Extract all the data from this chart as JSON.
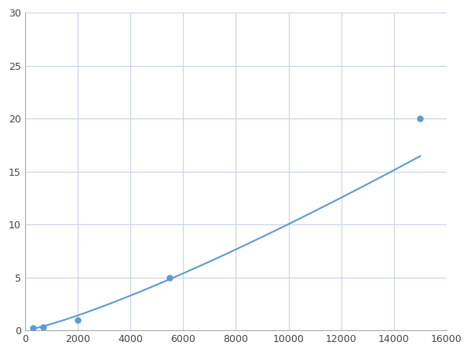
{
  "x": [
    300,
    700,
    2000,
    5500,
    15000
  ],
  "y": [
    0.2,
    0.3,
    1.0,
    5.0,
    20.0
  ],
  "line_color": "#5b9bd5",
  "marker_color": "#5b9bd5",
  "marker_size": 5,
  "line_width": 1.5,
  "xlim": [
    0,
    16000
  ],
  "ylim": [
    0,
    30
  ],
  "xticks": [
    0,
    2000,
    4000,
    6000,
    8000,
    10000,
    12000,
    14000,
    16000
  ],
  "yticks": [
    0,
    5,
    10,
    15,
    20,
    25,
    30
  ],
  "grid_color": "#c8d4e8",
  "background_color": "#ffffff",
  "figure_background": "#ffffff"
}
